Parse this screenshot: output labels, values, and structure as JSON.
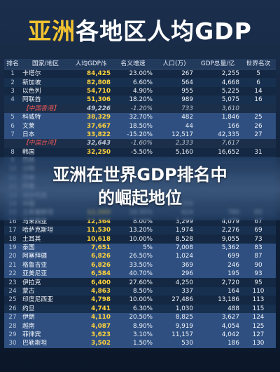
{
  "title": {
    "accent": "亚洲",
    "rest": "各地区人均GDP"
  },
  "caption": {
    "line1": "亚洲在世界GDP排名中",
    "line2": "的崛起地位"
  },
  "headers": [
    "排名",
    "国家/地区",
    "人均GDP/$",
    "名义增速",
    "人口(万)",
    "GDP总量/亿",
    "世界名次"
  ],
  "rows": [
    {
      "rank": "1",
      "name": "卡塔尔",
      "gdp": "84,425",
      "growth": "23.00%",
      "pop": "267",
      "total": "2,255",
      "world": "5",
      "style": "odd"
    },
    {
      "rank": "2",
      "name": "新加坡",
      "gdp": "82,808",
      "growth": "6.60%",
      "pop": "564",
      "total": "4,668",
      "world": "6",
      "style": "even"
    },
    {
      "rank": "3",
      "name": "以色列",
      "gdp": "54,710",
      "growth": "4.90%",
      "pop": "955",
      "total": "5,225",
      "world": "14",
      "style": "odd"
    },
    {
      "rank": "4",
      "name": "阿联酋",
      "gdp": "51,306",
      "growth": "18.20%",
      "pop": "989",
      "total": "5,075",
      "world": "16",
      "style": "even"
    },
    {
      "rank": "",
      "name": "【中国香港】",
      "gdp": "49,226",
      "growth": "-1.20%",
      "pop": "733",
      "total": "3,610",
      "world": "",
      "style": "sub"
    },
    {
      "rank": "5",
      "name": "科威特",
      "gdp": "38,329",
      "growth": "32.70%",
      "pop": "482",
      "total": "1,846",
      "world": "25",
      "style": "hl"
    },
    {
      "rank": "6",
      "name": "文莱",
      "gdp": "37,667",
      "growth": "18.50%",
      "pop": "44",
      "total": "166",
      "world": "26",
      "style": "hl"
    },
    {
      "rank": "7",
      "name": "日本",
      "gdp": "33,822",
      "growth": "-15.20%",
      "pop": "12,517",
      "total": "42,335",
      "world": "27",
      "style": "hl"
    },
    {
      "rank": "",
      "name": "【中国台湾】",
      "gdp": "32,643",
      "growth": "-1.60%",
      "pop": "2,333",
      "total": "7,617",
      "world": "",
      "style": "sub"
    },
    {
      "rank": "8",
      "name": "韩国",
      "gdp": "32,250",
      "growth": "-5.50%",
      "pop": "5,160",
      "total": "16,652",
      "world": "31",
      "style": "odd"
    },
    {
      "rank": "9",
      "name": "巴林",
      "gdp": "",
      "growth": "",
      "pop": "",
      "total": "",
      "world": "",
      "style": "even"
    },
    {
      "rank": "10",
      "name": "沙特",
      "gdp": "",
      "growth": "",
      "pop": "",
      "total": "",
      "world": "",
      "style": "odd"
    },
    {
      "rank": "11",
      "name": "巴林",
      "gdp": "",
      "growth": "",
      "pop": "",
      "total": "",
      "world": "",
      "style": "even"
    },
    {
      "rank": "12",
      "name": "阿曼",
      "gdp": "",
      "growth": "",
      "pop": "",
      "total": "",
      "world": "",
      "style": "odd"
    },
    {
      "rank": "13",
      "name": "马尔代夫",
      "gdp": "",
      "growth": "",
      "pop": "",
      "total": "",
      "world": "",
      "style": "even"
    },
    {
      "rank": "14",
      "name": "中国",
      "gdp": "",
      "growth": "",
      "pop": "141,255",
      "total": "",
      "world": "",
      "style": "odd"
    },
    {
      "rank": "15",
      "name": "土库曼斯坦",
      "gdp": "12,569",
      "growth": "19.50%",
      "pop": "624",
      "total": "780",
      "world": "65",
      "style": "even"
    },
    {
      "rank": "16",
      "name": "马来西亚",
      "gdp": "12,364",
      "growth": "8.00%",
      "pop": "3,299",
      "total": "4,079",
      "world": "67",
      "style": "odd"
    },
    {
      "rank": "17",
      "name": "哈萨克斯坦",
      "gdp": "11,530",
      "growth": "13.20%",
      "pop": "1,974",
      "total": "2,276",
      "world": "69",
      "style": "even"
    },
    {
      "rank": "18",
      "name": "土耳其",
      "gdp": "10,618",
      "growth": "10.00%",
      "pop": "8,528",
      "total": "9,055",
      "world": "73",
      "style": "odd"
    },
    {
      "rank": "19",
      "name": "泰国",
      "gdp": "7,651",
      "growth": "5%",
      "pop": "7,008",
      "total": "5,362",
      "world": "83",
      "style": "hl"
    },
    {
      "rank": "20",
      "name": "阿塞拜疆",
      "gdp": "6,826",
      "growth": "26.50%",
      "pop": "1,024",
      "total": "699",
      "world": "87",
      "style": "hl"
    },
    {
      "rank": "21",
      "name": "格鲁吉亚",
      "gdp": "6,826",
      "growth": "33.50%",
      "pop": "369",
      "total": "246",
      "world": "90",
      "style": "hl"
    },
    {
      "rank": "22",
      "name": "亚美尼亚",
      "gdp": "6,584",
      "growth": "40.70%",
      "pop": "296",
      "total": "195",
      "world": "93",
      "style": "hl"
    },
    {
      "rank": "23",
      "name": "伊拉克",
      "gdp": "6,400",
      "growth": "27.60%",
      "pop": "4,250",
      "total": "2,720",
      "world": "95",
      "style": "odd"
    },
    {
      "rank": "24",
      "name": "蒙古",
      "gdp": "4,863",
      "growth": "8.50%",
      "pop": "337",
      "total": "164",
      "world": "110",
      "style": "even"
    },
    {
      "rank": "25",
      "name": "印度尼西亚",
      "gdp": "4,798",
      "growth": "10.00%",
      "pop": "27,486",
      "total": "13,186",
      "world": "113",
      "style": "odd"
    },
    {
      "rank": "26",
      "name": "约旦",
      "gdp": "4,741",
      "growth": "6.30%",
      "pop": "1,030",
      "total": "488",
      "world": "115",
      "style": "even"
    },
    {
      "rank": "27",
      "name": "伊朗",
      "gdp": "4,110",
      "growth": "20.50%",
      "pop": "8,825",
      "total": "3,627",
      "world": "124",
      "style": "hl"
    },
    {
      "rank": "28",
      "name": "越南",
      "gdp": "4,087",
      "growth": "8.90%",
      "pop": "9,919",
      "total": "4,054",
      "world": "125",
      "style": "hl"
    },
    {
      "rank": "29",
      "name": "菲律宾",
      "gdp": "3,623",
      "growth": "3.10%",
      "pop": "11,157",
      "total": "4,042",
      "world": "127",
      "style": "hl"
    },
    {
      "rank": "30",
      "name": "巴勒斯坦",
      "gdp": "3,502",
      "growth": "1.50%",
      "pop": "530",
      "total": "186",
      "world": "130",
      "style": "hl"
    }
  ],
  "colors": {
    "accent": "#f2c230",
    "gdp": "#ffd23c",
    "background": "#0f1f36",
    "highlight_row": "#2e4f80",
    "sub_label": "#e05555"
  }
}
